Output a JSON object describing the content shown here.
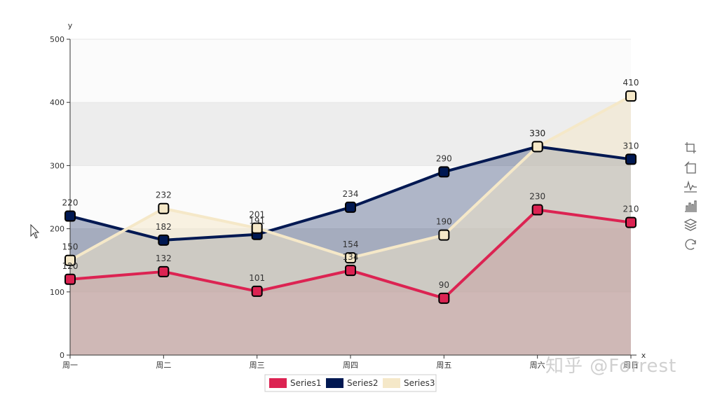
{
  "chart_data": {
    "type": "line",
    "area": true,
    "title": "",
    "xlabel": "x",
    "ylabel": "y",
    "categories": [
      "周一",
      "周二",
      "周三",
      "周四",
      "周五",
      "周六",
      "周日"
    ],
    "ylim": [
      0,
      500
    ],
    "yticks": [
      0,
      100,
      200,
      300,
      400,
      500
    ],
    "series": [
      {
        "name": "Series1",
        "color": "#dc2352",
        "values": [
          120,
          132,
          101,
          134,
          90,
          230,
          210
        ]
      },
      {
        "name": "Series2",
        "color": "#001852",
        "values": [
          220,
          182,
          191,
          234,
          290,
          330,
          310
        ]
      },
      {
        "name": "Series3",
        "color": "#f5e8c8",
        "values": [
          150,
          232,
          201,
          154,
          190,
          330,
          410
        ]
      }
    ],
    "legend_position": "bottom-center",
    "split_area": true
  },
  "toolbox": {
    "items": [
      {
        "name": "zoom-icon",
        "label": "区域缩放"
      },
      {
        "name": "zoom-reset-icon",
        "label": "区域缩放还原"
      },
      {
        "name": "line-chart-icon",
        "label": "切换为折线图"
      },
      {
        "name": "bar-chart-icon",
        "label": "切换为柱状图"
      },
      {
        "name": "stack-icon",
        "label": "切换为堆叠"
      },
      {
        "name": "restore-icon",
        "label": "还原"
      }
    ]
  },
  "watermark": {
    "text": "知乎 @Forrest"
  }
}
